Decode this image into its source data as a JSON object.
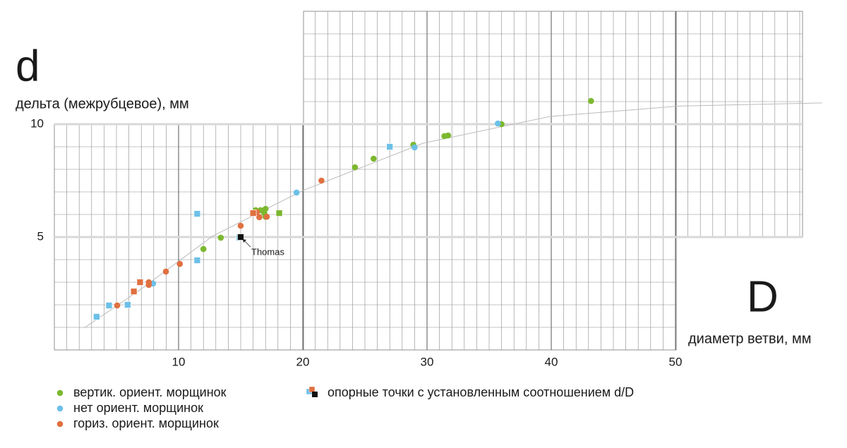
{
  "chart_data": {
    "type": "scatter",
    "y_symbol": "d",
    "y_label": "дельта (межрубцевое), мм",
    "x_symbol": "D",
    "x_label": "диаметр ветви, мм",
    "xlim": [
      0,
      62
    ],
    "ylim": [
      0,
      15
    ],
    "xticks": [
      10,
      20,
      30,
      40,
      50
    ],
    "yticks": [
      5,
      10
    ],
    "grid": true,
    "series": [
      {
        "name": "вертик. ориент. морщинок",
        "color": "#7cb82f",
        "marker": "circle",
        "x": [
          12.0,
          13.4,
          16.2,
          16.6,
          17.0,
          16.9,
          17.0,
          24.2,
          25.7,
          28.9,
          31.4,
          31.7,
          36.0,
          43.2
        ],
        "y": [
          4.47,
          4.97,
          6.19,
          6.19,
          6.25,
          6.06,
          5.9,
          8.09,
          8.47,
          9.09,
          9.47,
          9.5,
          10.0,
          11.03
        ]
      },
      {
        "name": "нет ориент. морщинок",
        "color": "#6cc0e8",
        "marker": "circle",
        "x": [
          7.95,
          19.5,
          29.0,
          35.7
        ],
        "y": [
          2.94,
          6.97,
          8.97,
          10.03
        ]
      },
      {
        "name": "гориз. ориент. морщинок",
        "color": "#e07040",
        "marker": "circle",
        "x": [
          5.06,
          7.6,
          7.6,
          8.98,
          10.1,
          15.0,
          16.5,
          17.1,
          21.5,
          16.3
        ],
        "y": [
          1.97,
          2.88,
          3.0,
          3.47,
          3.81,
          5.5,
          5.88,
          5.9,
          7.5,
          6.1
        ]
      },
      {
        "name": "опорные точки с установленным соотношением d/D",
        "marker": "square",
        "colors": [
          "#6cc0e8",
          "#6cc0e8",
          "#6cc0e8",
          "#6cc0e8",
          "#6cc0e8",
          "#6cc0e8",
          "#6cc0e8",
          "#e07040",
          "#e07040",
          "#e07040",
          "#111111",
          "#7cb82f"
        ],
        "x": [
          3.4,
          4.4,
          5.9,
          11.5,
          11.5,
          14.9,
          27.0,
          6.4,
          6.9,
          16.0,
          15.0,
          18.1
        ],
        "y": [
          1.47,
          1.97,
          2.0,
          6.03,
          3.97,
          4.97,
          9.0,
          2.59,
          3.0,
          6.06,
          5.0,
          6.06
        ]
      }
    ],
    "trend": {
      "color": "#bbbbbb",
      "x": [
        2.4,
        7,
        12.7,
        20,
        29.7,
        39.9,
        50.2,
        61.8
      ],
      "y": [
        0.97,
        2.7,
        5.03,
        7.06,
        9.16,
        10.34,
        10.8,
        10.94
      ]
    },
    "annotations": [
      {
        "text": "Thomas",
        "x": 15.0,
        "y": 5.0
      }
    ]
  }
}
